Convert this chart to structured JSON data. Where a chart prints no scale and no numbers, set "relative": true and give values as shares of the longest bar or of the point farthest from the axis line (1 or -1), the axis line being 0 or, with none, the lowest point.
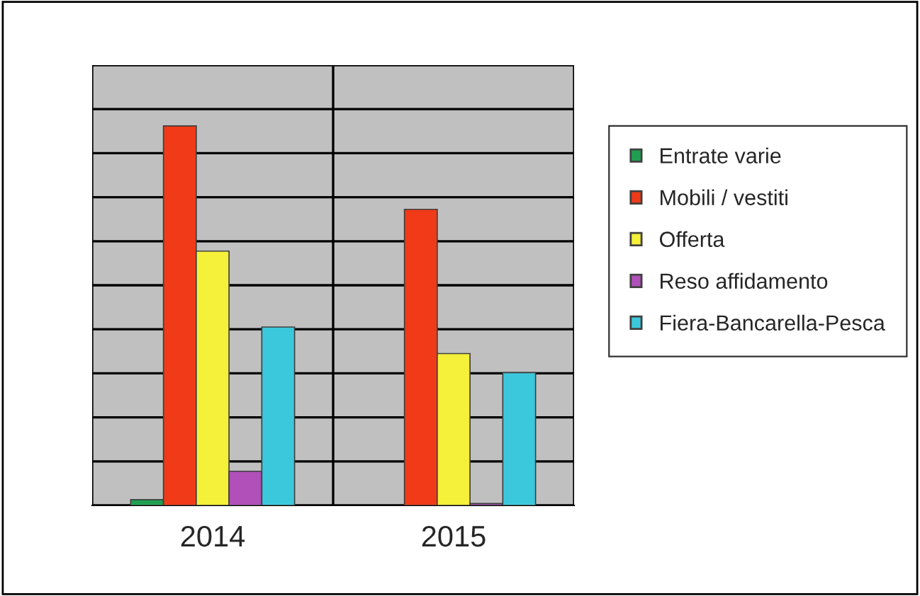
{
  "chart_data": {
    "type": "bar",
    "relative": true,
    "categories": [
      "2014",
      "2015"
    ],
    "series": [
      {
        "name": "Entrate varie",
        "color": "#1fa050",
        "values": [
          0.015,
          null
        ]
      },
      {
        "name": "Mobili / vestiti",
        "color": "#f03a18",
        "values": [
          1,
          0.78
        ]
      },
      {
        "name": "Offerta",
        "color": "#f5f03a",
        "values": [
          0.67,
          0.4
        ]
      },
      {
        "name": "Reso affidamento",
        "color": "#b050b8",
        "values": [
          0.09,
          0.005
        ]
      },
      {
        "name": "Fiera-Bancarella-Pesca",
        "color": "#3cc8dc",
        "values": [
          0.47,
          0.35
        ]
      }
    ],
    "grid": true,
    "legend": "right"
  }
}
